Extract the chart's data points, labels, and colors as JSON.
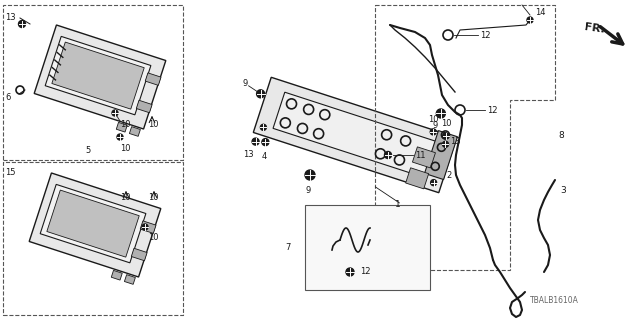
{
  "bg_color": "#ffffff",
  "diagram_color": "#1a1a1a",
  "light_gray": "#e8e8e8",
  "mid_gray": "#b0b0b0",
  "dark_gray": "#555555",
  "watermark": "TBALB1610A"
}
